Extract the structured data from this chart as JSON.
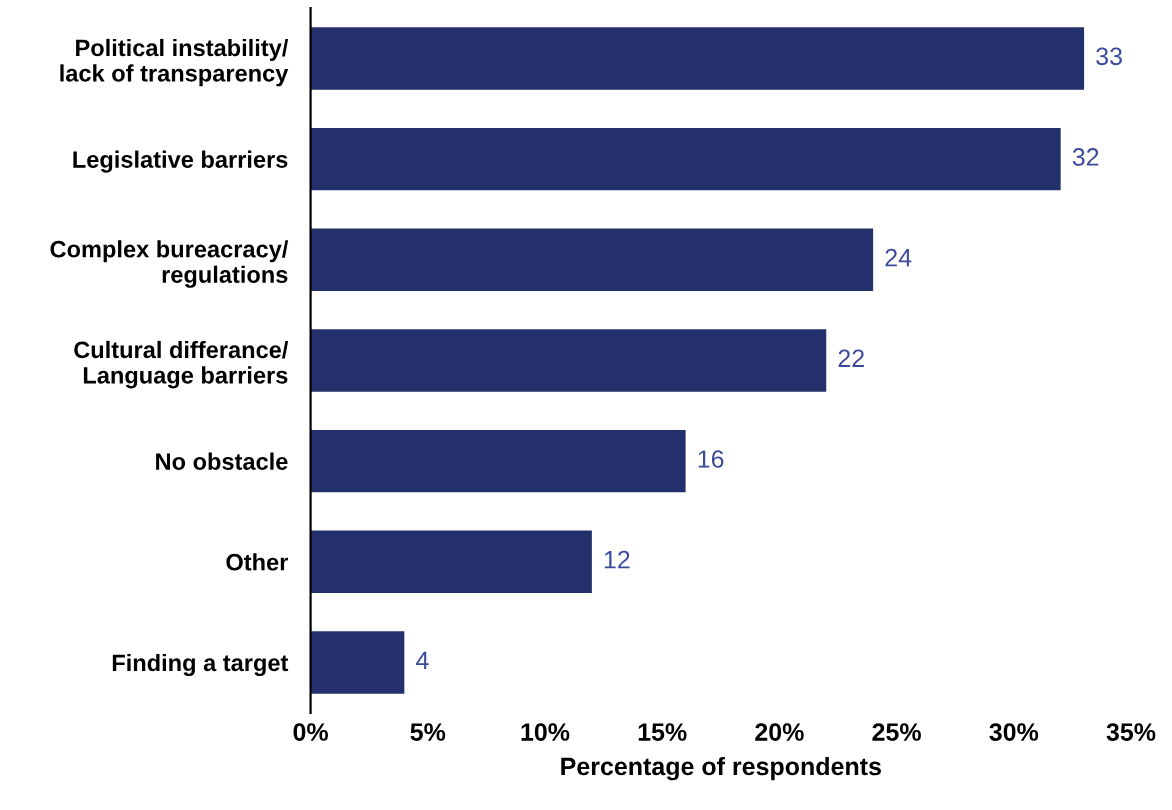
{
  "chart_data": {
    "type": "bar",
    "orientation": "horizontal",
    "xlabel": "Percentage of respondents",
    "categories": [
      "Political instability/\nlack of transparency",
      "Legislative barriers",
      "Complex bureacracy/\nregulations",
      "Cultural differance/\nLanguage barriers",
      "No obstacle",
      "Other",
      "Finding a target"
    ],
    "values": [
      33,
      32,
      24,
      22,
      16,
      12,
      4
    ],
    "color": "#24306b",
    "xlim": [
      0,
      35
    ],
    "xticks": [
      {
        "value": 0,
        "label": "0%"
      },
      {
        "value": 5,
        "label": "5%"
      },
      {
        "value": 10,
        "label": "10%"
      },
      {
        "value": 15,
        "label": "15%"
      },
      {
        "value": 20,
        "label": "20%"
      },
      {
        "value": 25,
        "label": "25%"
      },
      {
        "value": 30,
        "label": "30%"
      },
      {
        "value": 35,
        "label": "35%"
      }
    ],
    "data_labels": true,
    "grid": false
  }
}
